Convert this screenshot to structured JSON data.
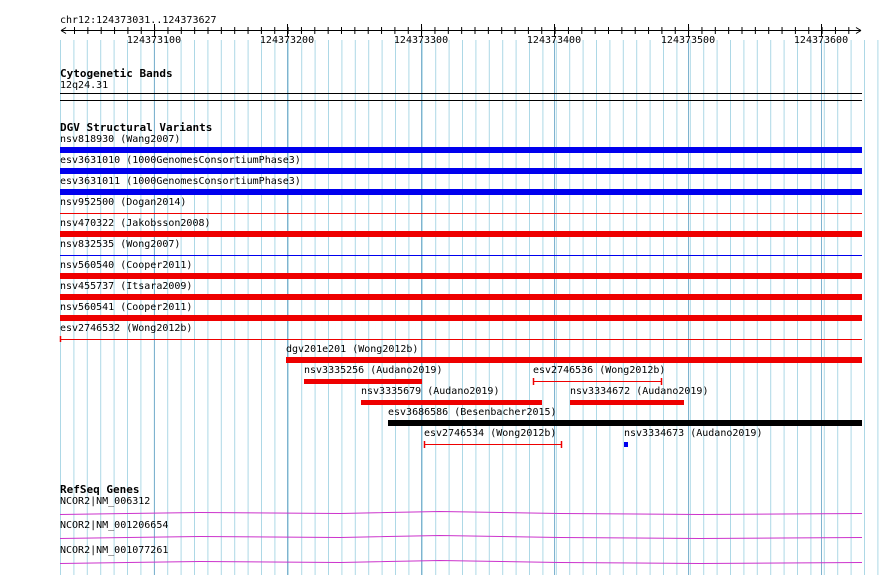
{
  "ruler": {
    "location": "chr12:124373031..124373627",
    "ticks": [
      "124373100",
      "124373200",
      "124373300",
      "124373400",
      "124373500",
      "124373600"
    ]
  },
  "tracks": {
    "cytobands": {
      "title": "Cytogenetic Bands",
      "band": "12q24.31"
    },
    "dgv": {
      "title": "DGV Structural Variants",
      "features": [
        {
          "label": "nsv818930 (Wang2007)",
          "color": "#0000ee",
          "kind": "bar"
        },
        {
          "label": "esv3631010 (1000GenomesConsortiumPhase3)",
          "color": "#0000ee",
          "kind": "bar"
        },
        {
          "label": "esv3631011 (1000GenomesConsortiumPhase3)",
          "color": "#0000ee",
          "kind": "bar"
        },
        {
          "label": "nsv952500 (Dogan2014)",
          "color": "#ee0000",
          "kind": "line"
        },
        {
          "label": "nsv470322 (Jakobsson2008)",
          "color": "#ee0000",
          "kind": "bar"
        },
        {
          "label": "nsv832535 (Wong2007)",
          "color": "#0000ee",
          "kind": "line"
        },
        {
          "label": "nsv560540 (Cooper2011)",
          "color": "#ee0000",
          "kind": "bar"
        },
        {
          "label": "nsv455737 (Itsara2009)",
          "color": "#ee0000",
          "kind": "bar"
        },
        {
          "label": "nsv560541 (Cooper2011)",
          "color": "#ee0000",
          "kind": "bar"
        },
        {
          "label": "esv2746532 (Wong2012b)",
          "color": "#ee0000",
          "kind": "line"
        },
        {
          "label": "dgv201e201 (Wong2012b)",
          "color": "#ee0000",
          "kind": "bar"
        },
        {
          "label": "nsv3335256 (Audano2019)",
          "color": "#ee0000",
          "kind": "bar"
        },
        {
          "label": "esv2746536 (Wong2012b)",
          "color": "#ee0000",
          "kind": "capped"
        },
        {
          "label": "nsv3335679 (Audano2019)",
          "color": "#ee0000",
          "kind": "bar"
        },
        {
          "label": "nsv3334672 (Audano2019)",
          "color": "#ee0000",
          "kind": "bar"
        },
        {
          "label": "esv3686586 (Besenbacher2015)",
          "color": "#000000",
          "kind": "bar"
        },
        {
          "label": "esv2746534 (Wong2012b)",
          "color": "#ee0000",
          "kind": "capped"
        },
        {
          "label": "nsv3334673 (Audano2019)",
          "color": "#0000ee",
          "kind": "bar"
        }
      ]
    },
    "refseq": {
      "title": "RefSeq Genes",
      "color": "#cc33cc",
      "genes": [
        {
          "label": "NCOR2|NM_006312"
        },
        {
          "label": "NCOR2|NM_001206654"
        },
        {
          "label": "NCOR2|NM_001077261"
        }
      ]
    }
  },
  "colors": {
    "grid": "#add8e6",
    "ruler": "#000000",
    "divider": "#000000"
  }
}
